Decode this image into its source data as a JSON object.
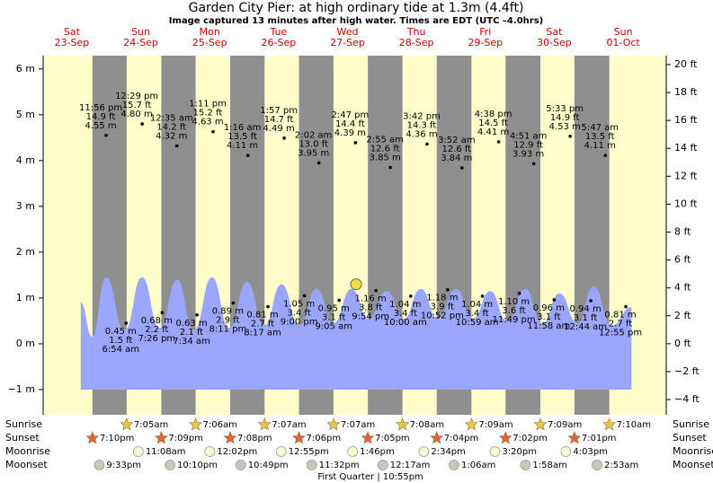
{
  "chart_data": {
    "type": "area",
    "title": "Garden City Pier: at high  ordinary tide at 1.3m (4.4ft)",
    "subtitle": "Image captured 13 minutes after high water. Times are EDT (UTC –4.0hrs)",
    "xlim": [
      2,
      219
    ],
    "ylim": [
      -1.55,
      6.29
    ],
    "yticks": [
      {
        "value": -1,
        "label": "−1 m"
      },
      {
        "value": 0,
        "label": "0 m"
      },
      {
        "value": 1,
        "label": "1 m"
      },
      {
        "value": 2,
        "label": "2 m"
      },
      {
        "value": 3,
        "label": "3 m"
      },
      {
        "value": 4,
        "label": "4 m"
      },
      {
        "value": 5,
        "label": "5 m"
      },
      {
        "value": 6,
        "label": "6 m"
      }
    ],
    "y2lim": [
      -5.09,
      20.64
    ],
    "y2ticks": [
      {
        "value": -4,
        "label": "−4 ft"
      },
      {
        "value": -2,
        "label": "−2 ft"
      },
      {
        "value": 0,
        "label": "0 ft"
      },
      {
        "value": 2,
        "label": "2 ft"
      },
      {
        "value": 4,
        "label": "4 ft"
      },
      {
        "value": 6,
        "label": "6 ft"
      },
      {
        "value": 8,
        "label": "8 ft"
      },
      {
        "value": 10,
        "label": "10 ft"
      },
      {
        "value": 12,
        "label": "12 ft"
      },
      {
        "value": 14,
        "label": "14 ft"
      },
      {
        "value": 16,
        "label": "16 ft"
      },
      {
        "value": 18,
        "label": "18 ft"
      },
      {
        "value": 20,
        "label": "20 ft"
      }
    ],
    "day_color": "#ffffcc",
    "night_color": "#8f8f8f",
    "curve": {
      "color": "#9aa6ff",
      "x": [
        15.1,
        19.1,
        23.8,
        30.4,
        36.4,
        42.6,
        48.6,
        54.5,
        60.8,
        66.8,
        73.0,
        79.0,
        85.0,
        91.2,
        97.2,
        103.1,
        109.4,
        115.4,
        121.6,
        127.6,
        133.5,
        139.5,
        145.8,
        151.7,
        157.7,
        163.6,
        169.9,
        175.9,
        181.8,
        188.1,
        193.7,
        200.0,
        206.9
      ],
      "values": [
        0.9,
        0.15,
        1.45,
        0.3,
        1.45,
        0.35,
        1.4,
        0.3,
        1.45,
        0.35,
        1.35,
        0.4,
        1.3,
        0.4,
        1.2,
        0.45,
        1.2,
        0.55,
        1.15,
        0.55,
        1.2,
        0.55,
        1.2,
        0.55,
        1.15,
        0.5,
        1.2,
        0.45,
        1.1,
        0.45,
        1.25,
        0.4,
        0.8
      ]
    },
    "now": {
      "x": 111.0,
      "m": 1.3,
      "color": "#eedd44"
    },
    "row_labels": {
      "sunrise": "Sunrise",
      "sunset": "Sunset",
      "moonrise": "Moonrise",
      "moonset": "Moonset"
    },
    "days": [
      {
        "weekday": "Sat",
        "date": "23-Sep",
        "sunset": "7:10pm",
        "moonset": "9:33pm",
        "tides": [
          {
            "time": "11:56 pm",
            "ft_label": "14.9 ft",
            "m": 4.55,
            "m_label": "4.55 m"
          }
        ]
      },
      {
        "weekday": "Sun",
        "date": "24-Sep",
        "sunrise": "7:05am",
        "sunset": "7:09pm",
        "moonrise": "11:08am",
        "moonset": "10:10pm",
        "tides": [
          {
            "time": "6:54 am",
            "ft_label": "1.5 ft",
            "m": 0.45,
            "m_label": "0.45 m"
          },
          {
            "time": "12:29 pm",
            "ft_label": "15.7 ft",
            "m": 4.8,
            "m_label": "4.80 m"
          },
          {
            "time": "7:26 pm",
            "ft_label": "2.2 ft",
            "m": 0.68,
            "m_label": "0.68 m"
          }
        ]
      },
      {
        "weekday": "Mon",
        "date": "25-Sep",
        "sunrise": "7:06am",
        "sunset": "7:08pm",
        "moonrise": "12:02pm",
        "moonset": "10:49pm",
        "tides": [
          {
            "time": "12:35 am",
            "ft_label": "14.2 ft",
            "m": 4.32,
            "m_label": "4.32 m"
          },
          {
            "time": "7:34 am",
            "ft_label": "2.1 ft",
            "m": 0.63,
            "m_label": "0.63 m"
          },
          {
            "time": "1:11 pm",
            "ft_label": "15.2 ft",
            "m": 4.63,
            "m_label": "4.63 m"
          },
          {
            "time": "8:11 pm",
            "ft_label": "2.9 ft",
            "m": 0.89,
            "m_label": "0.89 m"
          }
        ]
      },
      {
        "weekday": "Tue",
        "date": "26-Sep",
        "sunrise": "7:07am",
        "sunset": "7:06pm",
        "moonrise": "12:55pm",
        "moonset": "11:32pm",
        "tides": [
          {
            "time": "1:16 am",
            "ft_label": "13.5 ft",
            "m": 4.11,
            "m_label": "4.11 m"
          },
          {
            "time": "8:17 am",
            "ft_label": "2.7 ft",
            "m": 0.81,
            "m_label": "0.81 m"
          },
          {
            "time": "1:57 pm",
            "ft_label": "14.7 ft",
            "m": 4.49,
            "m_label": "4.49 m"
          },
          {
            "time": "9:00 pm",
            "ft_label": "3.4 ft",
            "m": 1.05,
            "m_label": "1.05 m"
          }
        ]
      },
      {
        "weekday": "Wed",
        "date": "27-Sep",
        "sunrise": "7:07am",
        "sunset": "7:05pm",
        "moonrise": "1:46pm",
        "moon_phase": "First Quarter | 10:55pm",
        "tides": [
          {
            "time": "2:02 am",
            "ft_label": "13.0 ft",
            "m": 3.95,
            "m_label": "3.95 m"
          },
          {
            "time": "9:05 am",
            "ft_label": "3.1 ft",
            "m": 0.95,
            "m_label": "0.95 m"
          },
          {
            "time": "2:47 pm",
            "ft_label": "14.4 ft",
            "m": 4.39,
            "m_label": "4.39 m"
          },
          {
            "time": "9:54 pm",
            "ft_label": "3.8 ft",
            "m": 1.16,
            "m_label": "1.16 m"
          }
        ]
      },
      {
        "weekday": "Thu",
        "date": "28-Sep",
        "sunrise": "7:08am",
        "sunset": "7:04pm",
        "moonrise": "2:34pm",
        "moonset": "12:17am",
        "tides": [
          {
            "time": "2:55 am",
            "ft_label": "12.6 ft",
            "m": 3.85,
            "m_label": "3.85 m"
          },
          {
            "time": "10:00 am",
            "ft_label": "3.4 ft",
            "m": 1.04,
            "m_label": "1.04 m"
          },
          {
            "time": "3:42 pm",
            "ft_label": "14.3 ft",
            "m": 4.36,
            "m_label": "4.36 m"
          },
          {
            "time": "10:52 pm",
            "ft_label": "3.9 ft",
            "m": 1.18,
            "m_label": "1.18 m"
          }
        ]
      },
      {
        "weekday": "Fri",
        "date": "29-Sep",
        "sunrise": "7:09am",
        "sunset": "7:02pm",
        "moonrise": "3:20pm",
        "moonset": "1:06am",
        "tides": [
          {
            "time": "3:52 am",
            "ft_label": "12.6 ft",
            "m": 3.84,
            "m_label": "3.84 m"
          },
          {
            "time": "10:59 am",
            "ft_label": "3.4 ft",
            "m": 1.04,
            "m_label": "1.04 m"
          },
          {
            "time": "4:38 pm",
            "ft_label": "14.5 ft",
            "m": 4.41,
            "m_label": "4.41 m"
          },
          {
            "time": "11:49 pm",
            "ft_label": "3.6 ft",
            "m": 1.1,
            "m_label": "1.10 m"
          }
        ]
      },
      {
        "weekday": "Sat",
        "date": "30-Sep",
        "sunrise": "7:09am",
        "sunset": "7:01pm",
        "moonrise": "4:03pm",
        "moonset": "1:58am",
        "tides": [
          {
            "time": "4:51 am",
            "ft_label": "12.9 ft",
            "m": 3.93,
            "m_label": "3.93 m"
          },
          {
            "time": "11:58 am",
            "ft_label": "3.1 ft",
            "m": 0.96,
            "m_label": "0.96 m"
          },
          {
            "time": "5:33 pm",
            "ft_label": "14.9 ft",
            "m": 4.53,
            "m_label": "4.53 m"
          }
        ]
      },
      {
        "weekday": "Sun",
        "date": "01-Oct",
        "sunrise": "7:10am",
        "moonset": "2:53am",
        "tides": [
          {
            "time": "12:44 am",
            "ft_label": "3.1 ft",
            "m": 0.94,
            "m_label": "0.94 m"
          },
          {
            "time": "5:47 am",
            "ft_label": "13.5 ft",
            "m": 4.11,
            "m_label": "4.11 m"
          },
          {
            "time": "12:55 pm",
            "ft_label": "2.7 ft",
            "m": 0.81,
            "m_label": "0.81 m"
          }
        ]
      }
    ]
  }
}
